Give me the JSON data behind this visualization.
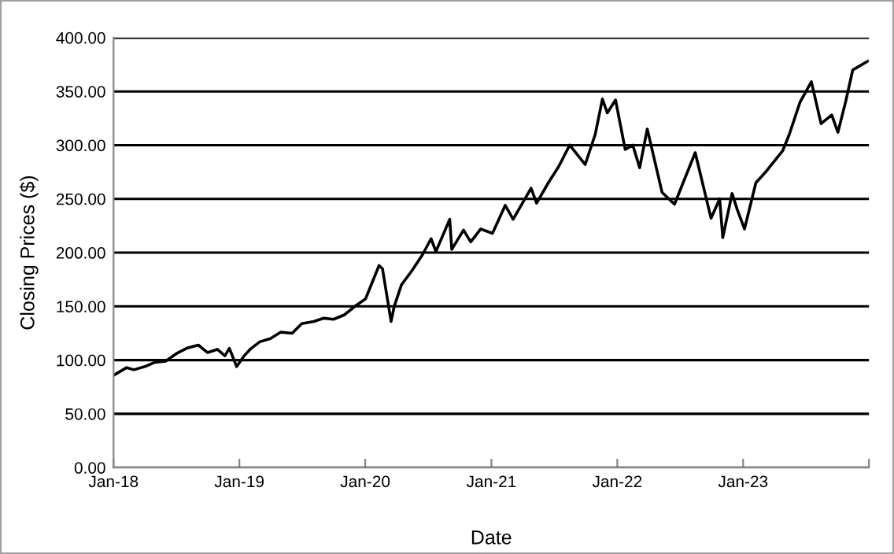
{
  "chart_data": {
    "type": "line",
    "xlabel": "Date",
    "ylabel": "Closing Prices ($)",
    "x": [
      "2018-01-02",
      "2018-02-08",
      "2018-03-01",
      "2018-04-02",
      "2018-05-01",
      "2018-06-01",
      "2018-07-02",
      "2018-08-01",
      "2018-09-04",
      "2018-10-01",
      "2018-10-29",
      "2018-11-20",
      "2018-12-03",
      "2018-12-24",
      "2019-01-15",
      "2019-02-01",
      "2019-03-01",
      "2019-04-01",
      "2019-05-01",
      "2019-06-03",
      "2019-07-01",
      "2019-08-05",
      "2019-09-03",
      "2019-10-01",
      "2019-11-01",
      "2019-12-02",
      "2020-01-02",
      "2020-02-10",
      "2020-02-20",
      "2020-03-16",
      "2020-03-25",
      "2020-04-15",
      "2020-05-15",
      "2020-06-15",
      "2020-07-10",
      "2020-07-24",
      "2020-09-02",
      "2020-09-08",
      "2020-10-12",
      "2020-11-02",
      "2020-12-01",
      "2021-01-04",
      "2021-02-10",
      "2021-03-05",
      "2021-04-26",
      "2021-05-12",
      "2021-06-15",
      "2021-07-15",
      "2021-08-16",
      "2021-09-30",
      "2021-10-29",
      "2021-11-19",
      "2021-12-03",
      "2021-12-27",
      "2022-01-24",
      "2022-02-15",
      "2022-03-07",
      "2022-03-29",
      "2022-05-11",
      "2022-06-16",
      "2022-08-15",
      "2022-09-30",
      "2022-10-25",
      "2022-11-03",
      "2022-11-30",
      "2022-12-15",
      "2023-01-05",
      "2023-02-07",
      "2023-03-10",
      "2023-04-26",
      "2023-05-15",
      "2023-06-15",
      "2023-07-18",
      "2023-08-15",
      "2023-09-15",
      "2023-10-03",
      "2023-10-25",
      "2023-11-15",
      "2023-12-28"
    ],
    "series": [
      {
        "color": "#000000",
        "values": [
          86,
          93,
          91,
          94,
          98,
          99,
          106,
          111,
          114,
          107,
          110,
          104,
          111,
          94,
          104,
          110,
          117,
          120,
          126,
          125,
          134,
          136,
          139,
          138,
          142,
          150,
          157,
          188,
          185,
          136,
          150,
          170,
          183,
          198,
          213,
          201,
          231,
          203,
          221,
          210,
          222,
          218,
          244,
          231,
          260,
          246,
          265,
          280,
          300,
          282,
          310,
          343,
          330,
          342,
          296,
          300,
          279,
          315,
          256,
          245,
          293,
          232,
          250,
          214,
          255,
          240,
          222,
          265,
          276,
          295,
          310,
          340,
          359,
          320,
          328,
          312,
          340,
          370,
          378
        ]
      }
    ],
    "ylim": [
      0,
      400
    ],
    "yticks": [
      {
        "value": 0,
        "label": "0.00"
      },
      {
        "value": 50,
        "label": "50.00"
      },
      {
        "value": 100,
        "label": "100.00"
      },
      {
        "value": 150,
        "label": "150.00"
      },
      {
        "value": 200,
        "label": "200.00"
      },
      {
        "value": 250,
        "label": "250.00"
      },
      {
        "value": 300,
        "label": "300.00"
      },
      {
        "value": 350,
        "label": "350.00"
      },
      {
        "value": 400,
        "label": "400.00"
      }
    ],
    "xlim": [
      "2018-01-01",
      "2024-01-01"
    ],
    "xticks": [
      {
        "value": "2018-01-01",
        "label": "Jan-18"
      },
      {
        "value": "2019-01-01",
        "label": "Jan-19"
      },
      {
        "value": "2020-01-01",
        "label": "Jan-20"
      },
      {
        "value": "2021-01-01",
        "label": "Jan-21"
      },
      {
        "value": "2022-01-01",
        "label": "Jan-22"
      },
      {
        "value": "2023-01-01",
        "label": "Jan-23"
      },
      {
        "value": "2024-01-01",
        "label": null
      }
    ],
    "grid": "y",
    "marker": "none",
    "line_style": "solid"
  }
}
